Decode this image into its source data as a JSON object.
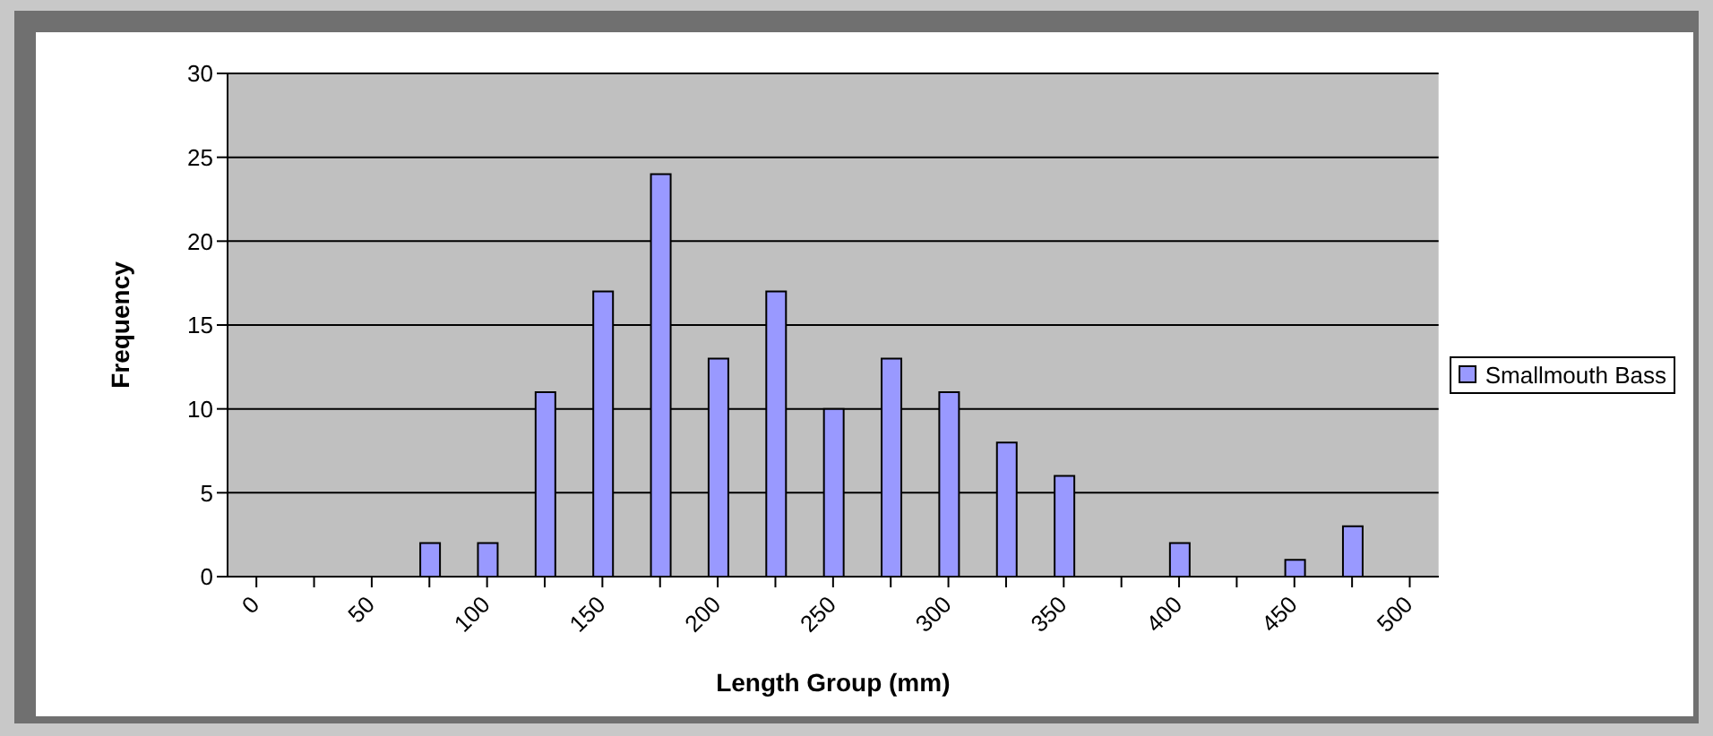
{
  "chart_data": {
    "type": "bar",
    "xlabel": "Length Group (mm)",
    "ylabel": "Frequency",
    "categories": [
      "0",
      null,
      "50",
      null,
      "100",
      null,
      "150",
      null,
      "200",
      null,
      "250",
      null,
      "300",
      null,
      "350",
      null,
      "400",
      null,
      "450",
      null,
      "500"
    ],
    "series": [
      {
        "name": "Smallmouth Bass",
        "color": "#9999ff",
        "values": [
          0,
          0,
          0,
          2,
          2,
          11,
          17,
          24,
          13,
          17,
          10,
          13,
          11,
          8,
          6,
          0,
          2,
          0,
          1,
          3,
          0
        ]
      }
    ],
    "ylim": [
      0,
      30
    ],
    "yticks": [
      0,
      5,
      10,
      15,
      20,
      25,
      30
    ],
    "grid": "y",
    "legend": "right"
  }
}
